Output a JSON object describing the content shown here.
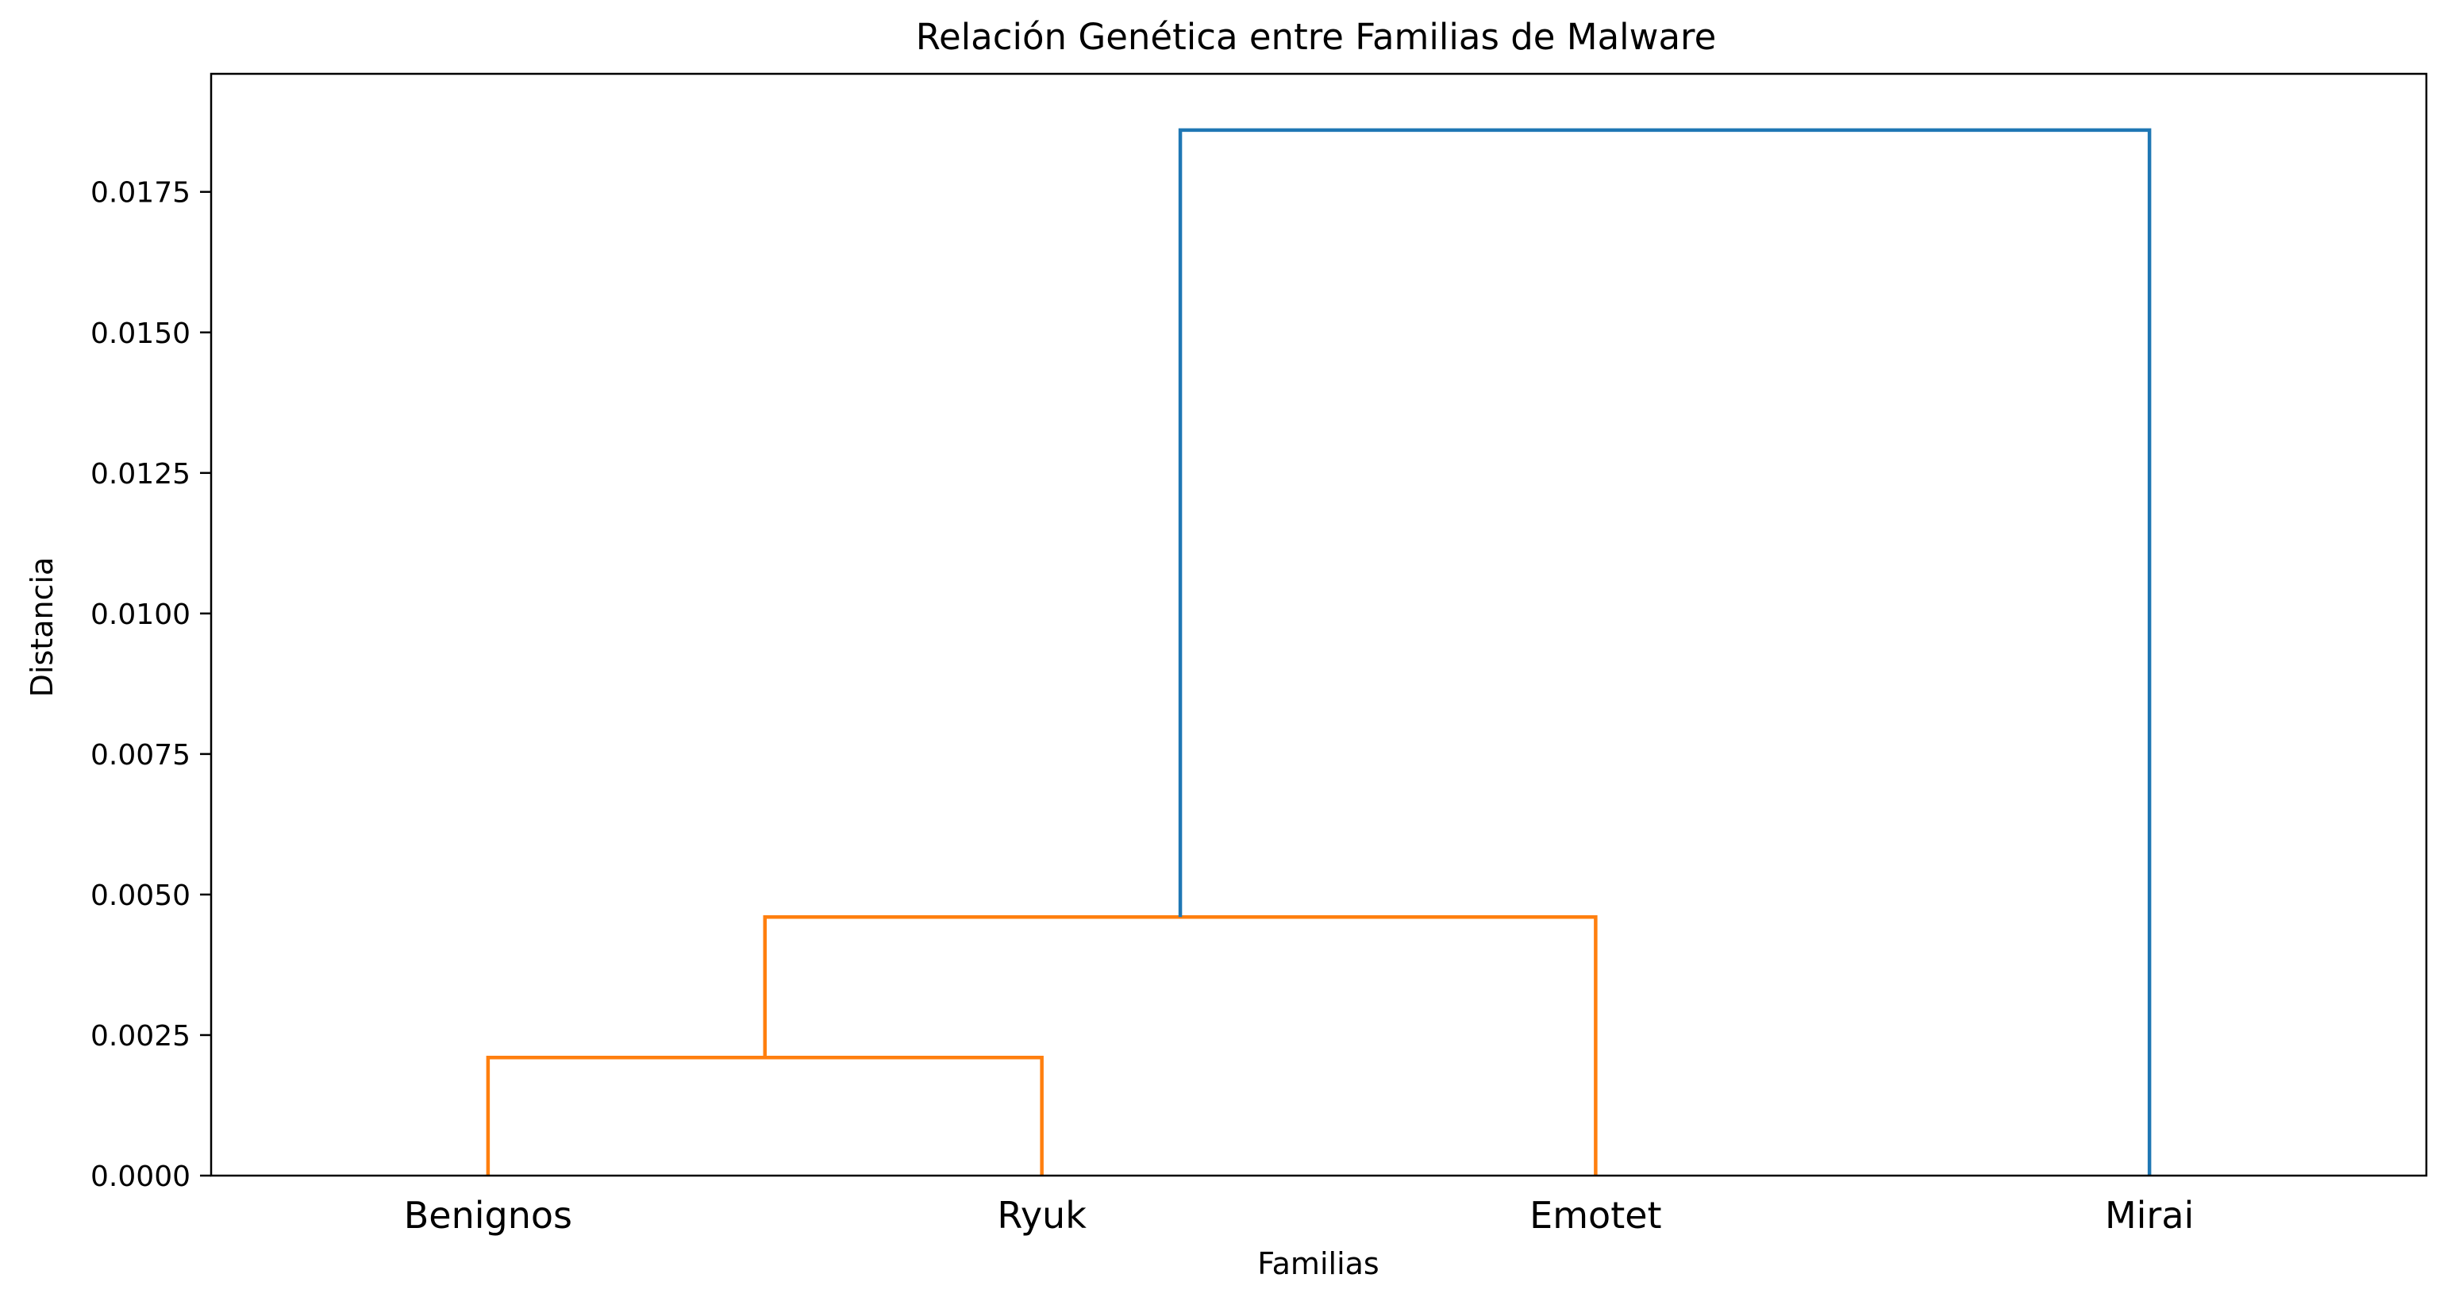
{
  "chart_data": {
    "type": "dendrogram",
    "title": "Relación Genética entre Familias de Malware",
    "xlabel": "Familias",
    "ylabel": "Distancia",
    "ylim": [
      0,
      0.0196
    ],
    "grid": false,
    "leaves": [
      "Benignos",
      "Ryuk",
      "Emotet",
      "Mirai"
    ],
    "yticks": [
      "0.0000",
      "0.0025",
      "0.0050",
      "0.0075",
      "0.0100",
      "0.0125",
      "0.0150",
      "0.0175"
    ],
    "merges": [
      {
        "left": "Benignos",
        "right": "Ryuk",
        "distance": 0.0021,
        "color": "#ff7f0e"
      },
      {
        "left": "Benignos+Ryuk",
        "right": "Emotet",
        "distance": 0.0046,
        "color": "#ff7f0e"
      },
      {
        "left": "Benignos+Ryuk+Emotet",
        "right": "Mirai",
        "distance": 0.0186,
        "color": "#1f77b4"
      }
    ]
  }
}
